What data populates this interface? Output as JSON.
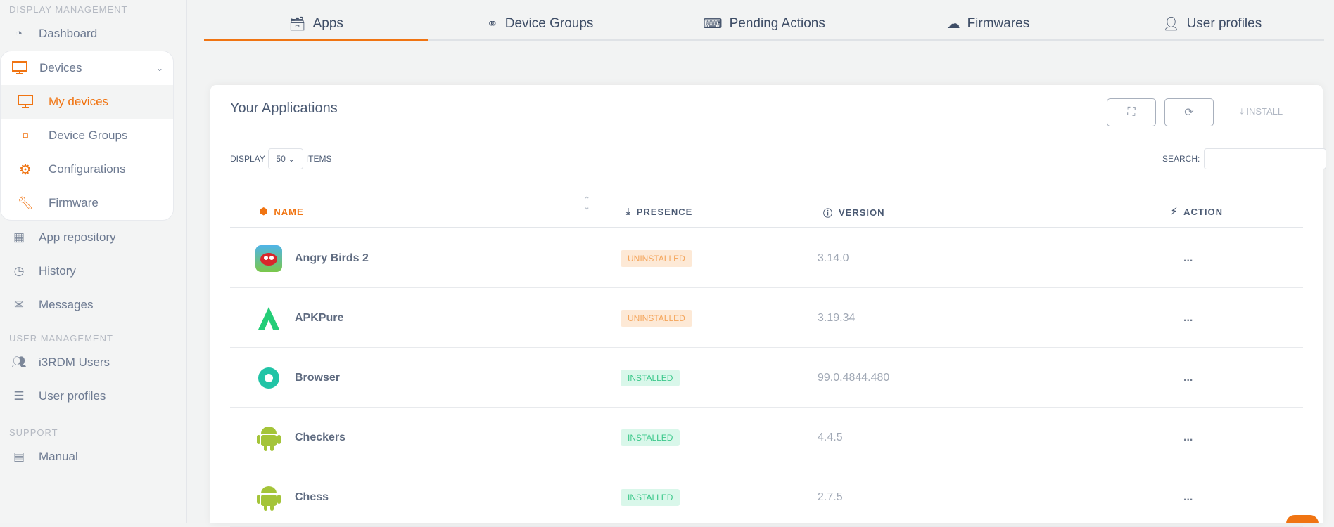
{
  "sidebar": {
    "sections": [
      "DISPLAY MANAGEMENT",
      "USER MANAGEMENT",
      "SUPPORT"
    ],
    "dashboard": "Dashboard",
    "devices": "Devices",
    "my_devices": "My devices",
    "device_groups": "Device Groups",
    "configurations": "Configurations",
    "firmware": "Firmware",
    "app_repository": "App repository",
    "history": "History",
    "messages": "Messages",
    "users": "i3RDM Users",
    "user_profiles": "User profiles",
    "manual": "Manual"
  },
  "tabs": [
    {
      "label": "Apps",
      "icon": "archive-icon"
    },
    {
      "label": "Device Groups",
      "icon": "groups-icon"
    },
    {
      "label": "Pending Actions",
      "icon": "terminal-icon"
    },
    {
      "label": "Firmwares",
      "icon": "cloud-download-icon"
    },
    {
      "label": "User profiles",
      "icon": "user-profile-icon"
    }
  ],
  "card": {
    "title": "Your Applications",
    "install": "INSTALL",
    "display": "DISPLAY",
    "page_size": "50",
    "items": "ITEMS",
    "search_label": "SEARCH:",
    "search_value": ""
  },
  "columns": {
    "name": "NAME",
    "presence": "PRESENCE",
    "version": "VERSION",
    "action": "ACTION"
  },
  "rows": [
    {
      "name": "Angry Birds 2",
      "presence": "UNINSTALLED",
      "version": "3.14.0",
      "action": "..."
    },
    {
      "name": "APKPure",
      "presence": "UNINSTALLED",
      "version": "3.19.34",
      "action": "..."
    },
    {
      "name": "Browser",
      "presence": "INSTALLED",
      "version": "99.0.4844.480",
      "action": "..."
    },
    {
      "name": "Checkers",
      "presence": "INSTALLED",
      "version": "4.4.5",
      "action": "..."
    },
    {
      "name": "Chess",
      "presence": "INSTALLED",
      "version": "2.7.5",
      "action": "..."
    }
  ],
  "colors": {
    "accent": "#f07412",
    "installed": "#3cc88b",
    "uninstalled": "#f4a55b"
  }
}
